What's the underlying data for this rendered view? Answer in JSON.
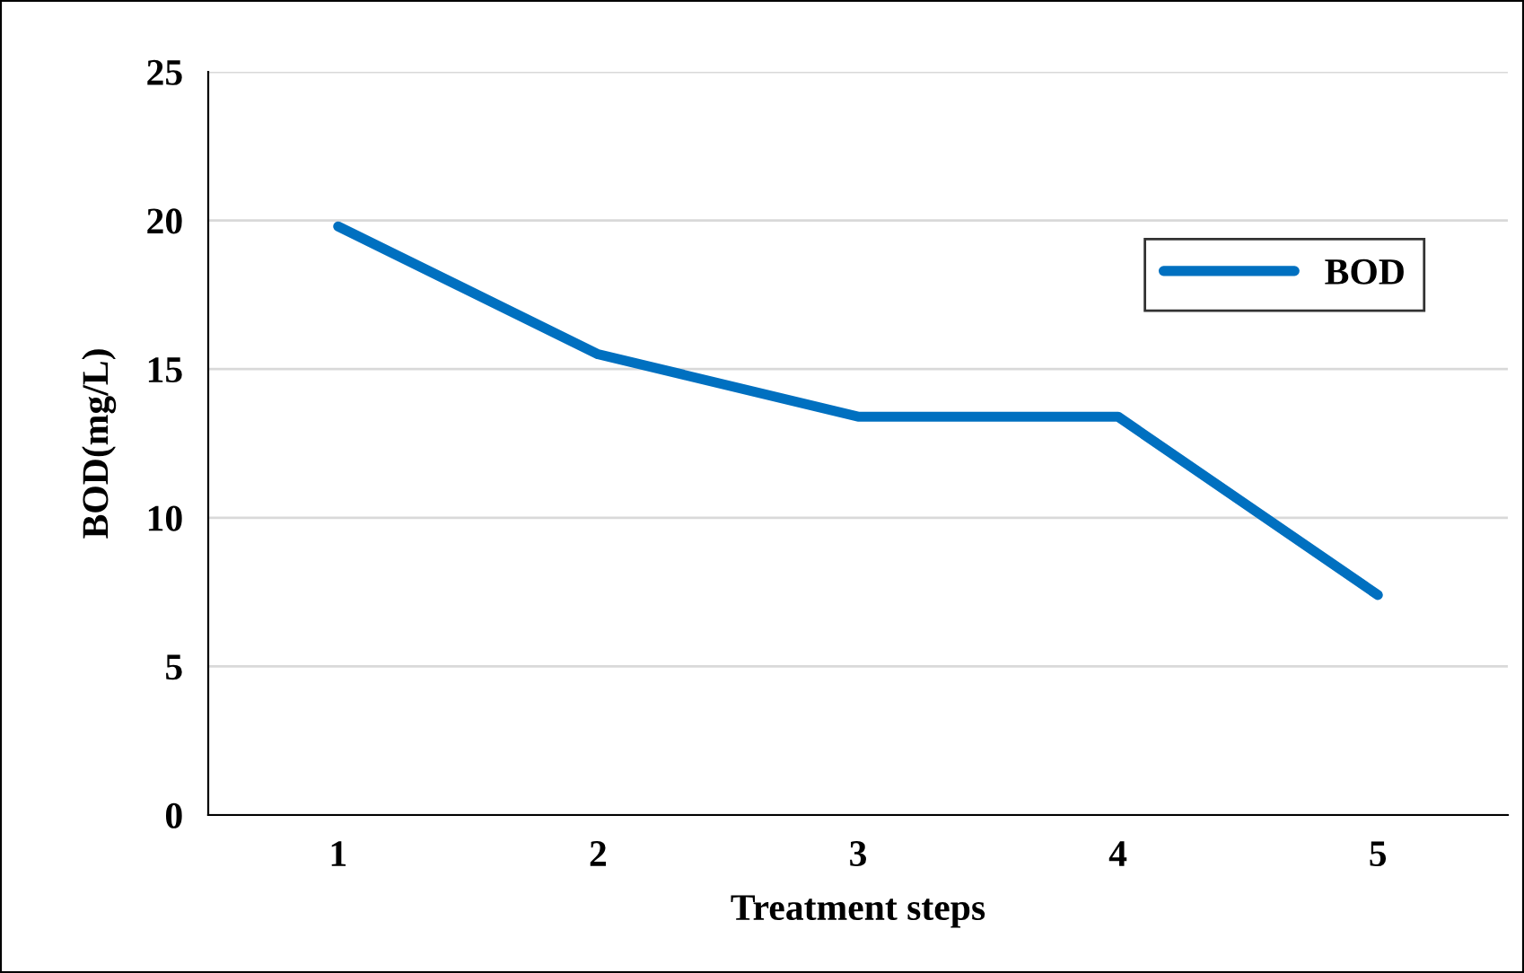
{
  "chart_data": {
    "type": "line",
    "xlabel": "Treatment steps",
    "ylabel": "BOD(mg/L)",
    "categories": [
      "1",
      "2",
      "3",
      "4",
      "5"
    ],
    "series": [
      {
        "name": "BOD",
        "color": "#0070c0",
        "values": [
          19.8,
          15.5,
          13.4,
          13.4,
          7.4
        ]
      }
    ],
    "ylim": [
      0,
      25
    ],
    "yticks": [
      0,
      5,
      10,
      15,
      20,
      25
    ],
    "grid": "y",
    "legend": "top right",
    "marker": "none",
    "line_style": "solid"
  }
}
